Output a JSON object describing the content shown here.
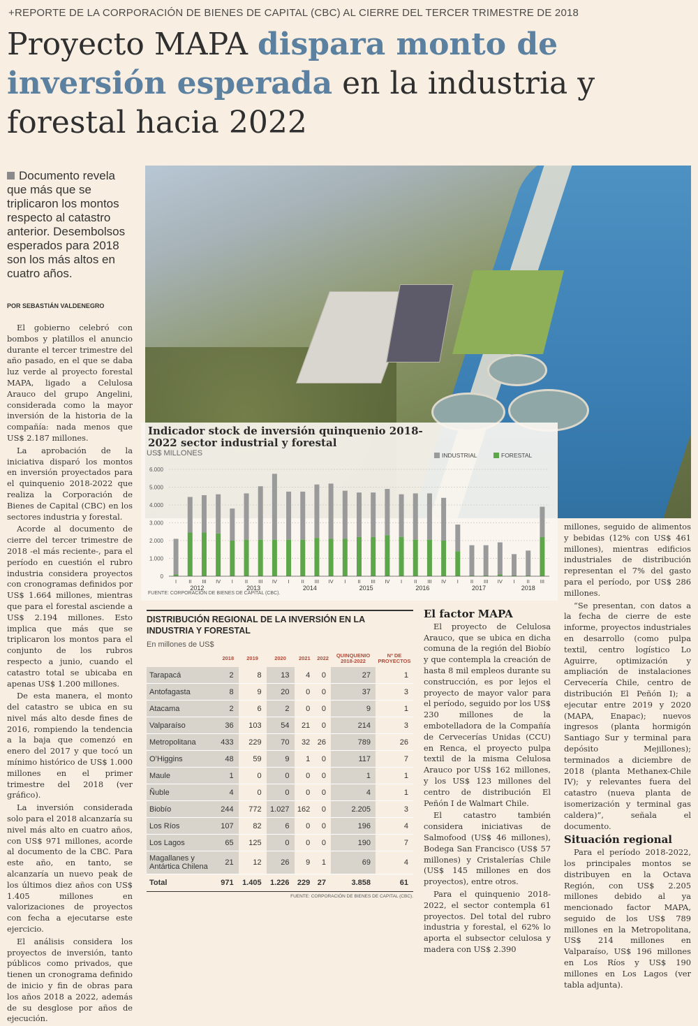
{
  "kicker": "+REPORTE DE LA CORPORACIÓN DE BIENES DE CAPITAL (CBC) AL CIERRE DEL TERCER TRIMESTRE DE 2018",
  "headline": {
    "part1": "Proyecto MAPA ",
    "part2": "dispara monto de inversión esperada",
    "part3": " en la industria y forestal hacia 2022"
  },
  "deck": "Documento revela que más que se triplicaron los montos respecto al catastro anterior. Desembolsos esperados para 2018 son los más altos en cuatro años.",
  "byline": "POR SEBASTIÁN VALDENEGRO",
  "col1": [
    "El gobierno celebró con bombos y platillos el anuncio durante el tercer trimestre del año pasado, en el que se daba luz verde al proyecto forestal MAPA, ligado a Celulosa Arauco del grupo Angelini, considerada como la mayor inversión de la historia de la compañía: nada menos que US$ 2.187 millones.",
    "La aprobación de la iniciativa disparó los montos en inversión proyectados para el quinquenio 2018-2022 que realiza la Corporación de Bienes de Capital (CBC) en los sectores industria y forestal.",
    "Acorde al documento de cierre del tercer trimestre de 2018 -el más reciente-, para el período en cuestión el rubro industria considera proyectos con cronogramas definidos por US$ 1.664 millones, mientras que para el forestal asciende a US$ 2.194 millones. Esto implica que más que se triplicaron los montos para el conjunto de los rubros respecto a junio, cuando el catastro total se ubicaba en apenas US$ 1.200 millones.",
    "De esta manera, el monto del catastro se ubica en su nivel más alto desde fines de 2016, rompiendo la tendencia a la baja que comenzó en enero del 2017 y que tocó un mínimo histórico de US$ 1.000 millones en el primer trimestre del 2018 (ver gráfico).",
    "La inversión considerada solo para el 2018 alcanzaría su nivel más alto en cuatro años, con US$ 971 millones, acorde al documento de la CBC. Para este año, en tanto, se alcanzaría un nuevo peak de los últimos diez años con US$ 1.405 millones en valorizaciones de proyectos con fecha a ejecutarse este ejercicio.",
    "El análisis considera los proyectos de inversión, tanto públicos como privados, que tienen un cronograma definido de inicio y fin de obras para los años 2018 a 2022, además de su desglose por años de ejecución."
  ],
  "col3": {
    "subhead": "El factor MAPA",
    "paragraphs": [
      "El proyecto de Celulosa Arauco, que se ubica en dicha comuna de la región del Biobío y que contempla la creación de hasta 8 mil empleos durante su construcción, es por lejos el proyecto de mayor valor para el período, seguido por los US$ 230 millones de la embotelladora de la Compañía de Cervecerías Unidas (CCU) en Renca, el proyecto pulpa textil de la misma Celulosa Arauco por US$ 162 millones, y los US$ 123 millones del centro de distribución El Peñón I de Walmart Chile.",
      "El catastro también considera iniciativas de Salmofood (US$ 46 millones), Bodega San Francisco (US$ 57 millones) y Cristalerías Chile (US$ 145 millones en dos proyectos), entre otros.",
      "Para el quinquenio 2018-2022, el sector contempla 61 proyectos. Del total del rubro industria y forestal, el 62% lo aporta el subsector celulosa y madera con US$ 2.390"
    ]
  },
  "col4": {
    "paragraphs_top": [
      "millones, seguido de alimentos y bebidas (12% con US$ 461 millones), mientras edificios industriales de distribución representan el 7% del gasto para el período, por US$ 286 millones.",
      "“Se presentan, con datos a la fecha de cierre de este informe, proyectos industriales en desarrollo (como pulpa textil, centro logístico Lo Aguirre, optimización y ampliación de instalaciones Cervecería Chile, centro de distribución El Peñón I); a ejecutar entre 2019 y 2020 (MAPA, Enapac); nuevos ingresos (planta hormigón Santiago Sur y terminal para depósito Mejillones); terminados a diciembre de 2018 (planta Methanex-Chile IV); y relevantes fuera del catastro (nueva planta de isomerización y terminal gas caldera)”, señala el documento."
    ],
    "subhead": "Situación regional",
    "paragraphs_bottom": [
      "Para el período 2018-2022, los principales montos se distribuyen en la Octava Región, con US$ 2.205 millones debido al ya mencionado factor MAPA, seguido de los US$ 789 millones en la Metropolitana, US$ 214 millones en Valparaíso, US$ 196 millones en Los Ríos y US$ 190 millones en Los Lagos (ver tabla adjunta)."
    ]
  },
  "chart_data": {
    "type": "bar",
    "title": "Indicador stock de inversión quinquenio 2018-2022 sector industrial y forestal",
    "unit": "US$ MILLONES",
    "source": "FUENTE: CORPORACIÓN DE BIENES DE CAPITAL (CBC).",
    "ylim": [
      0,
      6000
    ],
    "yticks": [
      "0",
      "1.000",
      "2.000",
      "3.000",
      "4.000",
      "5.000",
      "6.000"
    ],
    "quarters": [
      "I",
      "II",
      "III",
      "IV",
      "I",
      "II",
      "III",
      "IV",
      "I",
      "II",
      "III",
      "IV",
      "I",
      "II",
      "III",
      "IV",
      "I",
      "II",
      "III",
      "IV",
      "I",
      "II",
      "III",
      "IV",
      "I",
      "II",
      "III"
    ],
    "years": [
      {
        "label": "2012",
        "start": 0,
        "count": 4
      },
      {
        "label": "2013",
        "start": 4,
        "count": 4
      },
      {
        "label": "2014",
        "start": 8,
        "count": 4
      },
      {
        "label": "2015",
        "start": 12,
        "count": 4
      },
      {
        "label": "2016",
        "start": 16,
        "count": 4
      },
      {
        "label": "2017",
        "start": 20,
        "count": 4
      },
      {
        "label": "2018",
        "start": 24,
        "count": 3
      }
    ],
    "series": [
      {
        "name": "INDUSTRIAL",
        "color": "#9a9a9a",
        "values": [
          2000,
          2000,
          2100,
          2200,
          1800,
          2600,
          3000,
          3700,
          2700,
          2700,
          3000,
          3100,
          2700,
          2500,
          2500,
          2600,
          2400,
          2600,
          2600,
          2400,
          1500,
          1700,
          1700,
          1800,
          1200,
          1400,
          1700
        ]
      },
      {
        "name": "FORESTAL",
        "color": "#5da64a",
        "values": [
          100,
          2450,
          2450,
          2400,
          2000,
          2050,
          2050,
          2050,
          2050,
          2050,
          2150,
          2100,
          2100,
          2200,
          2200,
          2300,
          2200,
          2050,
          2050,
          2000,
          1400,
          40,
          40,
          100,
          40,
          40,
          2200
        ]
      }
    ]
  },
  "table": {
    "title": "DISTRIBUCIÓN REGIONAL DE LA INVERSIÓN EN LA INDUSTRIA Y FORESTAL",
    "unit": "En millones de US$",
    "headers": [
      "",
      "2018",
      "2019",
      "2020",
      "2021",
      "2022",
      "QUINQUENIO 2018-2022",
      "Nº DE PROYECTOS"
    ],
    "rows": [
      [
        "Tarapacá",
        "2",
        "8",
        "13",
        "4",
        "0",
        "27",
        "1"
      ],
      [
        "Antofagasta",
        "8",
        "9",
        "20",
        "0",
        "0",
        "37",
        "3"
      ],
      [
        "Atacama",
        "2",
        "6",
        "2",
        "0",
        "0",
        "9",
        "1"
      ],
      [
        "Valparaíso",
        "36",
        "103",
        "54",
        "21",
        "0",
        "214",
        "3"
      ],
      [
        "Metropolitana",
        "433",
        "229",
        "70",
        "32",
        "26",
        "789",
        "26"
      ],
      [
        "O’Higgins",
        "48",
        "59",
        "9",
        "1",
        "0",
        "117",
        "7"
      ],
      [
        "Maule",
        "1",
        "0",
        "0",
        "0",
        "0",
        "1",
        "1"
      ],
      [
        "Ñuble",
        "4",
        "0",
        "0",
        "0",
        "0",
        "4",
        "1"
      ],
      [
        "Biobío",
        "244",
        "772",
        "1.027",
        "162",
        "0",
        "2.205",
        "3"
      ],
      [
        "Los Ríos",
        "107",
        "82",
        "6",
        "0",
        "0",
        "196",
        "4"
      ],
      [
        "Los Lagos",
        "65",
        "125",
        "0",
        "0",
        "0",
        "190",
        "7"
      ],
      [
        "Magallanes y Antártica Chilena",
        "21",
        "12",
        "26",
        "9",
        "1",
        "69",
        "4"
      ]
    ],
    "total": [
      "Total",
      "971",
      "1.405",
      "1.226",
      "229",
      "27",
      "3.858",
      "61"
    ],
    "source": "FUENTE: CORPORACIÓN DE BIENES DE CAPITAL (CBC)."
  }
}
